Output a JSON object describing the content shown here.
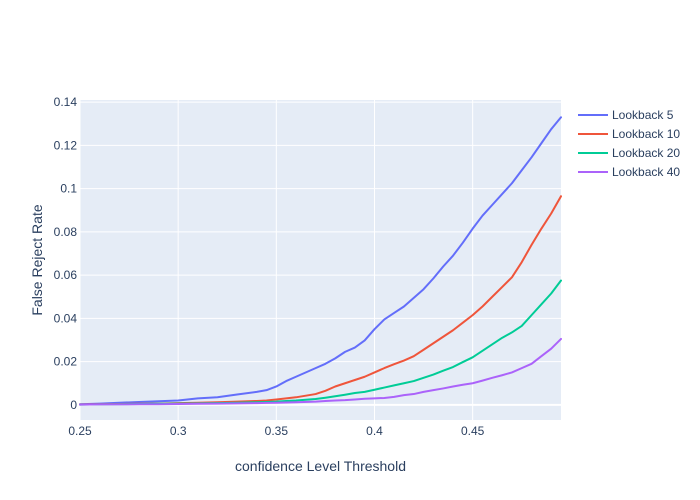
{
  "chart_data": {
    "type": "line",
    "title": "",
    "xlabel": "confidence Level Threshold",
    "ylabel": "False Reject Rate",
    "xlim": [
      0.25,
      0.495
    ],
    "ylim": [
      -0.007,
      0.141
    ],
    "x_ticks": [
      0.25,
      0.3,
      0.35,
      0.4,
      0.45
    ],
    "x_tick_labels": [
      "0.25",
      "0.3",
      "0.35",
      "0.4",
      "0.45"
    ],
    "y_ticks": [
      0,
      0.02,
      0.04,
      0.06,
      0.08,
      0.1,
      0.12,
      0.14
    ],
    "y_tick_labels": [
      "0",
      "0.02",
      "0.04",
      "0.06",
      "0.08",
      "0.1",
      "0.12",
      "0.14"
    ],
    "grid": true,
    "legend_position": "right",
    "colors": {
      "plot_background": "#e5ecf6",
      "grid": "#ffffff",
      "text": "#2a3f5f"
    },
    "x": [
      0.25,
      0.26,
      0.27,
      0.28,
      0.29,
      0.3,
      0.31,
      0.32,
      0.33,
      0.34,
      0.345,
      0.35,
      0.355,
      0.36,
      0.37,
      0.375,
      0.38,
      0.385,
      0.39,
      0.395,
      0.4,
      0.405,
      0.41,
      0.415,
      0.42,
      0.425,
      0.43,
      0.435,
      0.44,
      0.445,
      0.45,
      0.455,
      0.46,
      0.465,
      0.47,
      0.475,
      0.48,
      0.485,
      0.49,
      0.495
    ],
    "series": [
      {
        "name": "Lookback 5",
        "color": "#636efa",
        "values": [
          0.0003,
          0.0006,
          0.001,
          0.0013,
          0.0017,
          0.002,
          0.003,
          0.0035,
          0.0048,
          0.006,
          0.0068,
          0.0085,
          0.011,
          0.013,
          0.017,
          0.019,
          0.0215,
          0.0245,
          0.0265,
          0.0298,
          0.035,
          0.0395,
          0.0425,
          0.0455,
          0.0495,
          0.0535,
          0.0585,
          0.064,
          0.069,
          0.075,
          0.0815,
          0.0875,
          0.0925,
          0.0975,
          0.1025,
          0.1085,
          0.1145,
          0.121,
          0.1275,
          0.133
        ]
      },
      {
        "name": "Lookback 10",
        "color": "#ef553b",
        "values": [
          0.0002,
          0.0003,
          0.0004,
          0.0005,
          0.0006,
          0.0008,
          0.001,
          0.0012,
          0.0015,
          0.0018,
          0.002,
          0.0025,
          0.003,
          0.0035,
          0.005,
          0.0065,
          0.0085,
          0.01,
          0.0115,
          0.013,
          0.015,
          0.017,
          0.0188,
          0.0205,
          0.0225,
          0.0255,
          0.0285,
          0.0315,
          0.0345,
          0.038,
          0.0415,
          0.0455,
          0.05,
          0.0545,
          0.059,
          0.066,
          0.074,
          0.0815,
          0.0885,
          0.0965
        ]
      },
      {
        "name": "Lookback 20",
        "color": "#00cc96",
        "values": [
          0.0001,
          0.0002,
          0.0003,
          0.0004,
          0.0005,
          0.0006,
          0.0007,
          0.0008,
          0.001,
          0.0012,
          0.0013,
          0.0015,
          0.0018,
          0.002,
          0.0027,
          0.0033,
          0.004,
          0.0047,
          0.0055,
          0.006,
          0.007,
          0.008,
          0.009,
          0.01,
          0.011,
          0.0125,
          0.014,
          0.0158,
          0.0175,
          0.0198,
          0.022,
          0.025,
          0.028,
          0.031,
          0.0335,
          0.0365,
          0.0415,
          0.0465,
          0.0515,
          0.0575
        ]
      },
      {
        "name": "Lookback 40",
        "color": "#ab63fa",
        "values": [
          0.0001,
          0.0002,
          0.0002,
          0.0003,
          0.0003,
          0.0004,
          0.0005,
          0.0006,
          0.0007,
          0.0008,
          0.0009,
          0.001,
          0.0011,
          0.0012,
          0.0015,
          0.0018,
          0.002,
          0.0022,
          0.0025,
          0.0028,
          0.003,
          0.0032,
          0.0037,
          0.0045,
          0.005,
          0.006,
          0.0068,
          0.0076,
          0.0085,
          0.0093,
          0.01,
          0.0112,
          0.0125,
          0.0137,
          0.015,
          0.017,
          0.019,
          0.0225,
          0.026,
          0.0305
        ]
      }
    ]
  }
}
